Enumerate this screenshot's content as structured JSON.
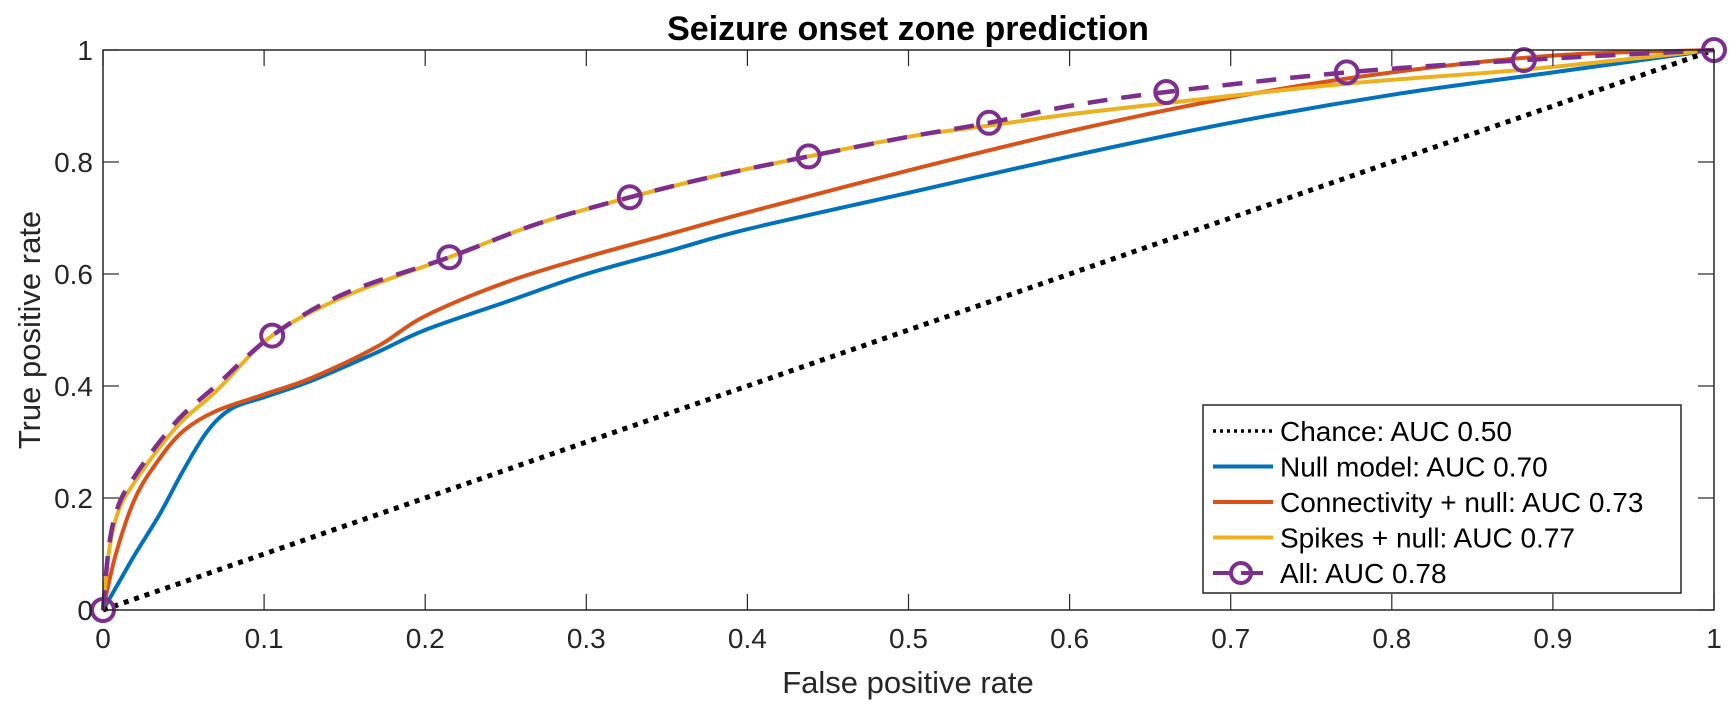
{
  "chart_data": {
    "type": "line",
    "title": "Seizure onset zone prediction",
    "xlabel": "False positive rate",
    "ylabel": "True positive rate",
    "xlim": [
      0,
      1
    ],
    "ylim": [
      0,
      1
    ],
    "xticks": [
      0,
      0.1,
      0.2,
      0.3,
      0.4,
      0.5,
      0.6,
      0.7,
      0.8,
      0.9,
      1
    ],
    "xtick_labels": [
      "0",
      "0.1",
      "0.2",
      "0.3",
      "0.4",
      "0.5",
      "0.6",
      "0.7",
      "0.8",
      "0.9",
      "1"
    ],
    "yticks": [
      0,
      0.2,
      0.4,
      0.6,
      0.8,
      1
    ],
    "ytick_labels": [
      "0",
      "0.2",
      "0.4",
      "0.6",
      "0.8",
      "1"
    ],
    "grid": false,
    "legend_position": "bottom-right",
    "series": [
      {
        "name": "Chance: AUC 0.50",
        "color": "#000000",
        "style": "dotted",
        "x": [
          0,
          1
        ],
        "y": [
          0,
          1
        ]
      },
      {
        "name": "Null model: AUC 0.70",
        "color": "#0072BD",
        "style": "solid",
        "x": [
          0,
          0.01,
          0.02,
          0.035,
          0.05,
          0.065,
          0.08,
          0.1,
          0.13,
          0.17,
          0.2,
          0.25,
          0.3,
          0.35,
          0.4,
          0.5,
          0.6,
          0.7,
          0.8,
          0.9,
          1
        ],
        "y": [
          0,
          0.05,
          0.1,
          0.17,
          0.25,
          0.32,
          0.36,
          0.38,
          0.41,
          0.46,
          0.5,
          0.55,
          0.6,
          0.64,
          0.68,
          0.745,
          0.81,
          0.87,
          0.92,
          0.96,
          1
        ]
      },
      {
        "name": "Connectivity + null: AUC 0.73",
        "color": "#D95319",
        "style": "solid",
        "x": [
          0,
          0.008,
          0.02,
          0.035,
          0.05,
          0.07,
          0.1,
          0.13,
          0.17,
          0.2,
          0.25,
          0.3,
          0.35,
          0.4,
          0.5,
          0.6,
          0.7,
          0.8,
          0.9,
          1
        ],
        "y": [
          0,
          0.1,
          0.2,
          0.27,
          0.32,
          0.355,
          0.385,
          0.415,
          0.47,
          0.525,
          0.585,
          0.63,
          0.67,
          0.71,
          0.785,
          0.855,
          0.915,
          0.96,
          0.99,
          1
        ]
      },
      {
        "name": "Spikes + null: AUC 0.77",
        "color": "#EDB120",
        "style": "solid",
        "x": [
          0,
          0.004,
          0.01,
          0.02,
          0.035,
          0.05,
          0.07,
          0.105,
          0.15,
          0.215,
          0.27,
          0.327,
          0.38,
          0.438,
          0.5,
          0.55,
          0.6,
          0.66,
          0.772,
          0.882,
          1
        ],
        "y": [
          0,
          0.11,
          0.18,
          0.23,
          0.29,
          0.34,
          0.39,
          0.49,
          0.56,
          0.63,
          0.69,
          0.737,
          0.775,
          0.81,
          0.845,
          0.865,
          0.885,
          0.905,
          0.94,
          0.965,
          1
        ]
      },
      {
        "name": "All: AUC 0.78",
        "color": "#7E2F8E",
        "style": "dashed-circle",
        "x": [
          0,
          0.004,
          0.01,
          0.02,
          0.035,
          0.05,
          0.07,
          0.105,
          0.15,
          0.215,
          0.27,
          0.327,
          0.38,
          0.438,
          0.5,
          0.55,
          0.6,
          0.66,
          0.772,
          0.882,
          1
        ],
        "y": [
          0,
          0.12,
          0.19,
          0.24,
          0.3,
          0.35,
          0.4,
          0.49,
          0.565,
          0.63,
          0.69,
          0.737,
          0.775,
          0.81,
          0.845,
          0.87,
          0.9,
          0.925,
          0.96,
          0.982,
          1
        ],
        "markers_x": [
          0,
          0.105,
          0.215,
          0.327,
          0.438,
          0.55,
          0.66,
          0.772,
          0.882,
          1
        ],
        "markers_y": [
          0,
          0.49,
          0.63,
          0.737,
          0.81,
          0.87,
          0.925,
          0.96,
          0.982,
          1
        ]
      }
    ]
  }
}
